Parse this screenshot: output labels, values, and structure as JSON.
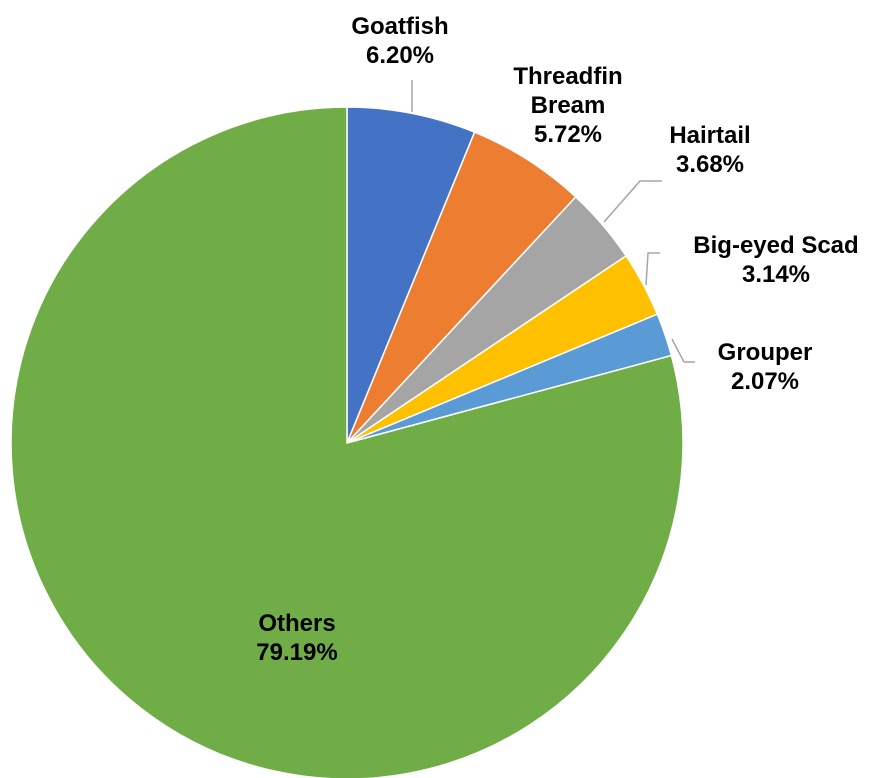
{
  "chart_data": {
    "type": "pie",
    "start_angle_deg": 0,
    "direction": "clockwise",
    "legend": "none",
    "slices": [
      {
        "name": "Goatfish",
        "name_lines": [
          "Goatfish"
        ],
        "value": 6.2,
        "label": "6.20%",
        "color": "#4472c4"
      },
      {
        "name": "Threadfin Bream",
        "name_lines": [
          "Threadfin",
          "Bream"
        ],
        "value": 5.72,
        "label": "5.72%",
        "color": "#ed7d31"
      },
      {
        "name": "Hairtail",
        "name_lines": [
          "Hairtail"
        ],
        "value": 3.68,
        "label": "3.68%",
        "color": "#a5a5a5"
      },
      {
        "name": "Big-eyed Scad",
        "name_lines": [
          "Big-eyed Scad"
        ],
        "value": 3.14,
        "label": "3.14%",
        "color": "#ffc000"
      },
      {
        "name": "Grouper",
        "name_lines": [
          "Grouper"
        ],
        "value": 2.07,
        "label": "2.07%",
        "color": "#5b9bd5"
      },
      {
        "name": "Others",
        "name_lines": [
          "Others"
        ],
        "value": 79.19,
        "label": "79.19%",
        "color": "#70ad47"
      }
    ]
  }
}
